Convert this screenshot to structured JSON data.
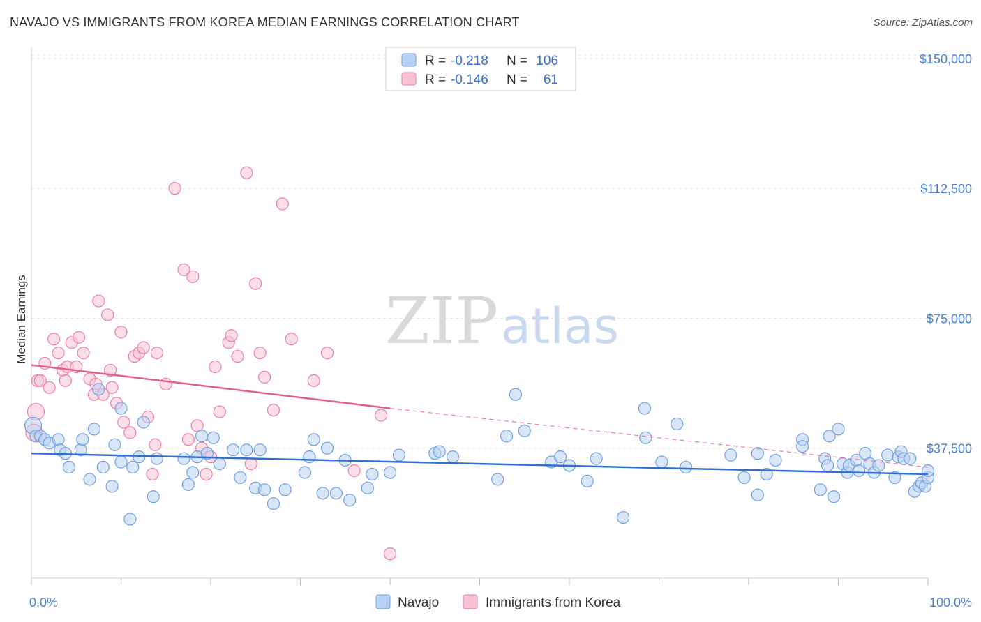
{
  "title": "NAVAJO VS IMMIGRANTS FROM KOREA MEDIAN EARNINGS CORRELATION CHART",
  "source": "Source: ZipAtlas.com",
  "watermark": {
    "zip": "ZIP",
    "atlas": "atlas"
  },
  "colors": {
    "navajo": "#6f9fe0",
    "navajo_fill": "#b9d1f3",
    "korea": "#e97fa4",
    "korea_fill": "#f7c3d3",
    "navajo_line": "#2f6fcf",
    "korea_line": "#e0608a"
  },
  "legend": {
    "rows": [
      {
        "r_label": "R =",
        "r_value": "-0.218",
        "n_label": "N =",
        "n_value": "106"
      },
      {
        "r_label": "R =",
        "r_value": "-0.146",
        "n_label": "N =",
        "n_value": "61"
      }
    ]
  },
  "bottom_legend": [
    "Navajo",
    "Immigrants from Korea"
  ],
  "chart_data": {
    "type": "scatter",
    "xlabel": "",
    "ylabel": "Median Earnings",
    "xlim": [
      0,
      100
    ],
    "ylim": [
      0,
      155000
    ],
    "x_tick_labels": [
      "0.0%",
      "100.0%"
    ],
    "y_ticks": [
      37500,
      75000,
      112500,
      150000
    ],
    "y_tick_labels": [
      "$37,500",
      "$75,000",
      "$112,500",
      "$150,000"
    ],
    "grid": "horizontal dashed",
    "legend_position": "top-center",
    "series": [
      {
        "name": "Navajo",
        "trend": {
          "x": [
            0,
            100
          ],
          "y": [
            36000,
            30000
          ],
          "style": "solid"
        },
        "points": [
          [
            0.2,
            44000
          ],
          [
            0.5,
            41000
          ],
          [
            1,
            41000
          ],
          [
            1.5,
            40000
          ],
          [
            2,
            39000
          ],
          [
            3,
            40000
          ],
          [
            3.2,
            37000
          ],
          [
            3.8,
            36000
          ],
          [
            4.2,
            32000
          ],
          [
            5.5,
            37000
          ],
          [
            5.7,
            40000
          ],
          [
            6.5,
            28500
          ],
          [
            7,
            43000
          ],
          [
            7.5,
            54500
          ],
          [
            8,
            32000
          ],
          [
            9,
            26500
          ],
          [
            9.3,
            38500
          ],
          [
            10,
            49000
          ],
          [
            10,
            33500
          ],
          [
            11,
            17000
          ],
          [
            11.3,
            32000
          ],
          [
            12,
            35000
          ],
          [
            12.5,
            45000
          ],
          [
            13.6,
            23500
          ],
          [
            14,
            34500
          ],
          [
            17,
            34500
          ],
          [
            17.5,
            27000
          ],
          [
            18,
            30500
          ],
          [
            18.5,
            35000
          ],
          [
            19,
            41000
          ],
          [
            19.6,
            36000
          ],
          [
            20.3,
            40500
          ],
          [
            21,
            33000
          ],
          [
            22.5,
            37000
          ],
          [
            23.3,
            29000
          ],
          [
            24,
            37000
          ],
          [
            25,
            26000
          ],
          [
            25.5,
            37000
          ],
          [
            26,
            25500
          ],
          [
            27,
            21500
          ],
          [
            28.3,
            25500
          ],
          [
            30.5,
            30500
          ],
          [
            31,
            35000
          ],
          [
            31.5,
            40000
          ],
          [
            32.5,
            24500
          ],
          [
            33,
            37500
          ],
          [
            34,
            24500
          ],
          [
            35,
            34000
          ],
          [
            35.5,
            22500
          ],
          [
            37.5,
            26000
          ],
          [
            38,
            30000
          ],
          [
            40,
            30500
          ],
          [
            41,
            35500
          ],
          [
            45,
            36000
          ],
          [
            45.5,
            36500
          ],
          [
            47,
            35000
          ],
          [
            52,
            28500
          ],
          [
            53,
            41000
          ],
          [
            54,
            53000
          ],
          [
            55,
            42500
          ],
          [
            58,
            33500
          ],
          [
            59,
            35000
          ],
          [
            60,
            32500
          ],
          [
            62,
            28000
          ],
          [
            63,
            34500
          ],
          [
            66,
            17500
          ],
          [
            68.4,
            49000
          ],
          [
            68.5,
            40500
          ],
          [
            70.3,
            33500
          ],
          [
            72,
            44500
          ],
          [
            73,
            32000
          ],
          [
            78,
            35500
          ],
          [
            79.5,
            29000
          ],
          [
            81,
            24000
          ],
          [
            81,
            36000
          ],
          [
            82,
            30000
          ],
          [
            83,
            34000
          ],
          [
            86,
            40000
          ],
          [
            86,
            38000
          ],
          [
            88,
            25500
          ],
          [
            88.5,
            34500
          ],
          [
            88.8,
            32500
          ],
          [
            89,
            41000
          ],
          [
            89.5,
            23500
          ],
          [
            90,
            43000
          ],
          [
            90.5,
            33000
          ],
          [
            91,
            30500
          ],
          [
            91.2,
            32500
          ],
          [
            92,
            34000
          ],
          [
            92.3,
            31000
          ],
          [
            93,
            36000
          ],
          [
            93.5,
            33000
          ],
          [
            94,
            30500
          ],
          [
            94.5,
            32500
          ],
          [
            95.5,
            35500
          ],
          [
            96.3,
            29000
          ],
          [
            96.7,
            35000
          ],
          [
            97,
            36500
          ],
          [
            97.3,
            34500
          ],
          [
            98,
            34500
          ],
          [
            98.5,
            25000
          ],
          [
            99,
            26500
          ],
          [
            99.3,
            27500
          ],
          [
            99.7,
            26500
          ],
          [
            100,
            29000
          ],
          [
            100,
            31000
          ]
        ]
      },
      {
        "name": "Immigrants from Korea",
        "trend": {
          "x": [
            0,
            40,
            100
          ],
          "y": [
            61500,
            49000,
            32000
          ],
          "solid_until": 40
        },
        "points": [
          [
            0.3,
            42000
          ],
          [
            0.5,
            48000
          ],
          [
            0.7,
            57000
          ],
          [
            1,
            57000
          ],
          [
            1.5,
            62000
          ],
          [
            2,
            55000
          ],
          [
            2.5,
            69000
          ],
          [
            3,
            65000
          ],
          [
            3.5,
            60000
          ],
          [
            3.8,
            57000
          ],
          [
            4,
            61000
          ],
          [
            4.5,
            68000
          ],
          [
            5,
            61000
          ],
          [
            5.3,
            69500
          ],
          [
            5.8,
            65000
          ],
          [
            6.5,
            57500
          ],
          [
            7,
            53000
          ],
          [
            7.2,
            56000
          ],
          [
            7.5,
            80000
          ],
          [
            8,
            53000
          ],
          [
            8.5,
            76000
          ],
          [
            8.8,
            60000
          ],
          [
            9,
            55000
          ],
          [
            9.5,
            50500
          ],
          [
            10,
            71000
          ],
          [
            10.3,
            45000
          ],
          [
            11,
            42000
          ],
          [
            11.5,
            64000
          ],
          [
            12,
            65000
          ],
          [
            12.5,
            66500
          ],
          [
            13,
            46500
          ],
          [
            13.5,
            30000
          ],
          [
            13.8,
            38500
          ],
          [
            14,
            65000
          ],
          [
            15,
            56000
          ],
          [
            16,
            112500
          ],
          [
            17,
            89000
          ],
          [
            17.5,
            40000
          ],
          [
            18,
            87000
          ],
          [
            18.5,
            44000
          ],
          [
            19,
            37500
          ],
          [
            19.5,
            30000
          ],
          [
            20,
            35000
          ],
          [
            20.5,
            61000
          ],
          [
            21,
            48000
          ],
          [
            22,
            68000
          ],
          [
            22.3,
            70000
          ],
          [
            23,
            64000
          ],
          [
            24,
            117000
          ],
          [
            24.5,
            33000
          ],
          [
            25,
            85000
          ],
          [
            25.5,
            65000
          ],
          [
            26,
            58000
          ],
          [
            27,
            48500
          ],
          [
            28,
            108000
          ],
          [
            29,
            69000
          ],
          [
            31.5,
            57000
          ],
          [
            33,
            65000
          ],
          [
            36,
            31000
          ],
          [
            39,
            47000
          ],
          [
            40,
            7000
          ]
        ]
      }
    ]
  }
}
